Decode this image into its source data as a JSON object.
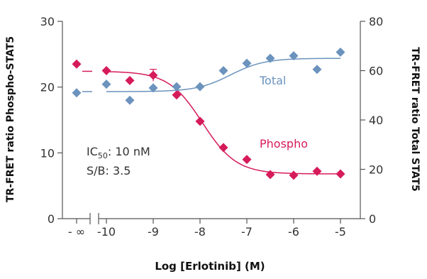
{
  "chart_data": {
    "type": "scatter",
    "xlabel": "Log [Erlotinib] (M)",
    "ylabel_left": "TR-FRET ratio Phospho-STAT5",
    "ylabel_right": "TR-FRET ratio Total STAT5",
    "x_ticks": [
      {
        "value": "-inf",
        "label": "- ∞"
      },
      {
        "value": -10,
        "label": "-10"
      },
      {
        "value": -9,
        "label": "-9"
      },
      {
        "value": -8,
        "label": "-8"
      },
      {
        "value": -7,
        "label": "-7"
      },
      {
        "value": -6,
        "label": "-6"
      },
      {
        "value": -5,
        "label": "-5"
      }
    ],
    "xlim": [
      -10.2,
      -4.8
    ],
    "y_left": {
      "ylim": [
        0,
        30
      ],
      "ticks": [
        {
          "value": 0,
          "label": "0"
        },
        {
          "value": 10,
          "label": "10"
        },
        {
          "value": 20,
          "label": "20"
        },
        {
          "value": 30,
          "label": "30"
        }
      ]
    },
    "y_right": {
      "ylim": [
        0,
        80
      ],
      "ticks": [
        {
          "value": 0,
          "label": "0"
        },
        {
          "value": 20,
          "label": "20"
        },
        {
          "value": 40,
          "label": "40"
        },
        {
          "value": 60,
          "label": "60"
        },
        {
          "value": 80,
          "label": "80"
        }
      ]
    },
    "series": [
      {
        "name": "Phospho",
        "axis": "left",
        "color": "#d61b5a",
        "marker": "diamond",
        "baseline": {
          "x": "-inf",
          "y": 23.5
        },
        "points": [
          {
            "x": -10.0,
            "y": 22.5
          },
          {
            "x": -9.5,
            "y": 21.0
          },
          {
            "x": -9.0,
            "y": 21.8,
            "err": 0.9
          },
          {
            "x": -8.5,
            "y": 18.8
          },
          {
            "x": -8.0,
            "y": 14.8
          },
          {
            "x": -7.5,
            "y": 10.8
          },
          {
            "x": -7.0,
            "y": 9.0
          },
          {
            "x": -6.5,
            "y": 6.7
          },
          {
            "x": -6.0,
            "y": 6.6
          },
          {
            "x": -5.5,
            "y": 7.2
          },
          {
            "x": -5.0,
            "y": 6.8
          }
        ],
        "fit": {
          "top": 22.4,
          "bottom": 6.8,
          "log_ic50": -7.95,
          "hill_slope": -1.2
        }
      },
      {
        "name": "Total",
        "axis": "right",
        "color": "#6b93bd",
        "marker": "diamond",
        "baseline": {
          "x": "-inf",
          "y": 51.0
        },
        "points": [
          {
            "x": -10.0,
            "y": 54.5
          },
          {
            "x": -9.5,
            "y": 48.0
          },
          {
            "x": -9.0,
            "y": 53.0
          },
          {
            "x": -8.5,
            "y": 53.5
          },
          {
            "x": -8.0,
            "y": 53.5
          },
          {
            "x": -7.5,
            "y": 60.0
          },
          {
            "x": -7.0,
            "y": 63.0
          },
          {
            "x": -6.5,
            "y": 65.0
          },
          {
            "x": -6.0,
            "y": 66.0
          },
          {
            "x": -5.5,
            "y": 60.5
          },
          {
            "x": -5.0,
            "y": 67.5
          }
        ],
        "fit": {
          "top": 65.0,
          "bottom": 51.5,
          "log_ec50": -7.35,
          "hill_slope": 1.2
        }
      }
    ],
    "annotations": {
      "ic50_prefix": "IC",
      "ic50_subscript": "50",
      "ic50_value": ": 10 nM",
      "sb": "S/B: 3.5"
    },
    "grid": false,
    "legend": "inline labels"
  }
}
